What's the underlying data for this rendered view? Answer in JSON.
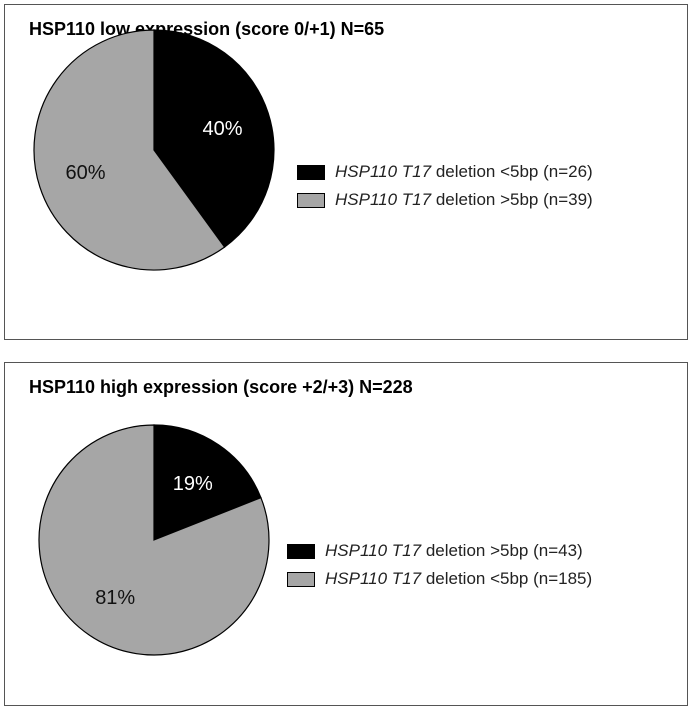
{
  "colors": {
    "black": "#000000",
    "gray": "#a6a6a6",
    "outline": "#555555"
  },
  "chart_data": [
    {
      "type": "pie",
      "title": "HSP110 low expression (score 0/+1) N=65",
      "legend_position": "right",
      "slices": [
        {
          "gene": "HSP110 T17",
          "label": "deletion <5bp (n=26)",
          "value": 40,
          "pct_label": "40%",
          "color": "#000000"
        },
        {
          "gene": "HSP110 T17",
          "label": "deletion >5bp (n=39)",
          "value": 60,
          "pct_label": "60%",
          "color": "#a6a6a6"
        }
      ]
    },
    {
      "type": "pie",
      "title": "HSP110 high expression (score +2/+3) N=228",
      "legend_position": "right",
      "slices": [
        {
          "gene": "HSP110 T17",
          "label": "deletion >5bp (n=43)",
          "value": 19,
          "pct_label": "19%",
          "color": "#000000"
        },
        {
          "gene": "HSP110 T17",
          "label": "deletion <5bp (n=185)",
          "value": 81,
          "pct_label": "81%",
          "color": "#a6a6a6"
        }
      ]
    }
  ]
}
